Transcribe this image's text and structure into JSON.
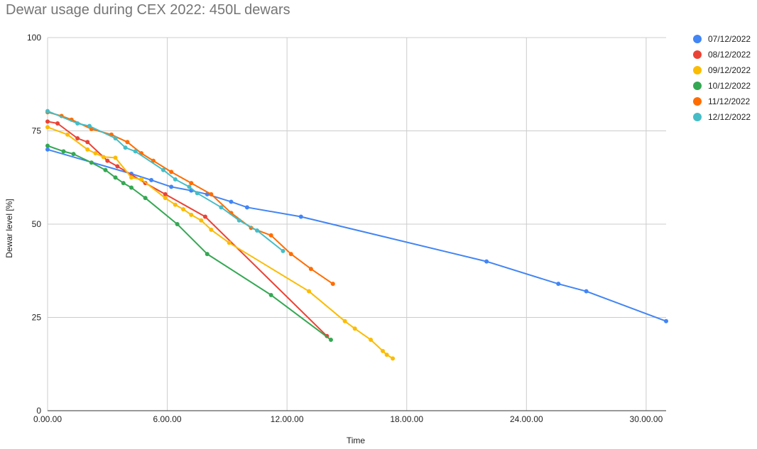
{
  "chart_data": {
    "type": "line",
    "title": "Dewar usage during CEX 2022: 450L dewars",
    "xlabel": "Time",
    "ylabel": "Dewar level [%]",
    "xlim": [
      0,
      31
    ],
    "ylim": [
      0,
      100
    ],
    "x_ticks": [
      "0.00.00",
      "6.00.00",
      "12.00.00",
      "18.00.00",
      "24.00.00",
      "30.00.00"
    ],
    "x_tick_values": [
      0,
      6,
      12,
      18,
      24,
      30
    ],
    "y_ticks": [
      "0",
      "25",
      "50",
      "75",
      "100"
    ],
    "y_tick_values": [
      0,
      25,
      50,
      75,
      100
    ],
    "grid": true,
    "legend_position": "right",
    "series": [
      {
        "name": "07/12/2022",
        "color": "#4285f4",
        "points": [
          [
            0,
            70
          ],
          [
            4.2,
            63.5
          ],
          [
            5.2,
            61.8
          ],
          [
            6.2,
            60
          ],
          [
            7.2,
            59
          ],
          [
            8.0,
            58
          ],
          [
            9.2,
            56
          ],
          [
            10.0,
            54.5
          ],
          [
            12.7,
            52
          ],
          [
            22.0,
            40
          ],
          [
            25.6,
            34
          ],
          [
            27.0,
            32
          ],
          [
            31.0,
            24
          ]
        ]
      },
      {
        "name": "08/12/2022",
        "color": "#ea4335",
        "points": [
          [
            0,
            77.5
          ],
          [
            0.5,
            77
          ],
          [
            1.5,
            73
          ],
          [
            2.0,
            72
          ],
          [
            3.0,
            67
          ],
          [
            3.5,
            65.5
          ],
          [
            4.9,
            61
          ],
          [
            5.9,
            58
          ],
          [
            7.9,
            52
          ],
          [
            14.0,
            20
          ]
        ]
      },
      {
        "name": "09/12/2022",
        "color": "#fbbc04",
        "points": [
          [
            0,
            76
          ],
          [
            1.0,
            74
          ],
          [
            2.0,
            70
          ],
          [
            2.4,
            69
          ],
          [
            2.8,
            68
          ],
          [
            3.4,
            67.8
          ],
          [
            4.2,
            62.5
          ],
          [
            4.7,
            62
          ],
          [
            5.9,
            57
          ],
          [
            6.4,
            55.2
          ],
          [
            6.8,
            54
          ],
          [
            7.2,
            52.5
          ],
          [
            7.7,
            51
          ],
          [
            8.2,
            48.5
          ],
          [
            9.1,
            45
          ],
          [
            13.1,
            32
          ],
          [
            14.9,
            24
          ],
          [
            15.4,
            22
          ],
          [
            16.2,
            19
          ],
          [
            16.8,
            16
          ],
          [
            17.0,
            15
          ],
          [
            17.3,
            14
          ]
        ]
      },
      {
        "name": "10/12/2022",
        "color": "#34a853",
        "points": [
          [
            0,
            71
          ],
          [
            0.8,
            69.5
          ],
          [
            1.3,
            68.8
          ],
          [
            2.2,
            66.5
          ],
          [
            2.9,
            64.5
          ],
          [
            3.4,
            62.5
          ],
          [
            3.8,
            61
          ],
          [
            4.2,
            59.8
          ],
          [
            4.9,
            57
          ],
          [
            6.5,
            50
          ],
          [
            8.0,
            42
          ],
          [
            11.2,
            31
          ],
          [
            14.2,
            19
          ]
        ]
      },
      {
        "name": "11/12/2022",
        "color": "#ff6d01",
        "points": [
          [
            0,
            80
          ],
          [
            0.7,
            79
          ],
          [
            1.2,
            78
          ],
          [
            2.2,
            75.5
          ],
          [
            3.2,
            74
          ],
          [
            4.0,
            72
          ],
          [
            4.7,
            69
          ],
          [
            5.3,
            67
          ],
          [
            6.2,
            64
          ],
          [
            7.2,
            61
          ],
          [
            8.2,
            58
          ],
          [
            9.2,
            53
          ],
          [
            10.2,
            49
          ],
          [
            11.2,
            47
          ],
          [
            12.2,
            42
          ],
          [
            13.2,
            38
          ],
          [
            14.3,
            34
          ]
        ]
      },
      {
        "name": "12/12/2022",
        "color": "#46bdc6",
        "points": [
          [
            0,
            80.3
          ],
          [
            1.5,
            77
          ],
          [
            2.1,
            76.3
          ],
          [
            3.4,
            73
          ],
          [
            3.9,
            70.5
          ],
          [
            4.4,
            69.5
          ],
          [
            5.8,
            64.5
          ],
          [
            6.4,
            62
          ],
          [
            7.1,
            60
          ],
          [
            7.5,
            58.3
          ],
          [
            8.7,
            54.5
          ],
          [
            9.6,
            51
          ],
          [
            10.5,
            48.3
          ],
          [
            11.8,
            42.8
          ]
        ]
      }
    ]
  }
}
